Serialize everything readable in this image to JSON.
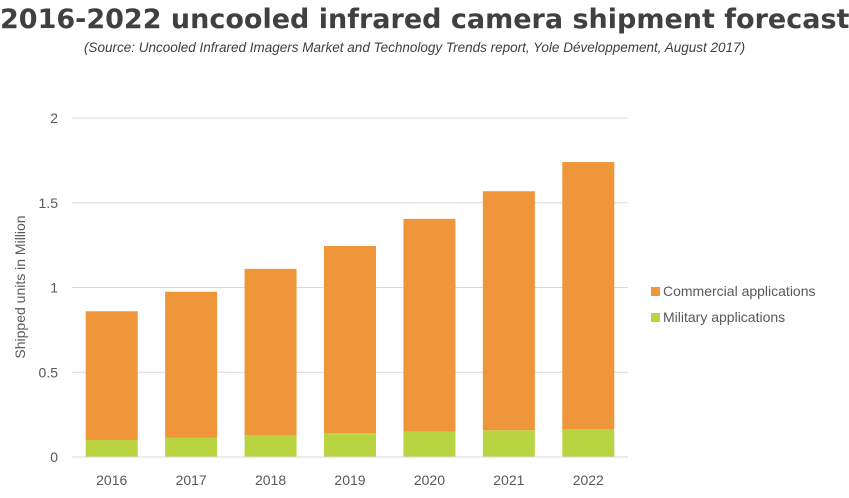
{
  "chart_data": {
    "type": "bar",
    "stacked": true,
    "title": "2016-2022 uncooled infrared camera shipment forecast",
    "subtitle": "(Source: Uncooled Infrared Imagers Market and Technology Trends report, Yole Développement, August 2017)",
    "xlabel": "",
    "ylabel": "Shipped units in Million",
    "ylim": [
      0,
      2
    ],
    "yticks": [
      "0",
      "0.5",
      "1",
      "1.5",
      "2"
    ],
    "grid": true,
    "legend_position": "right",
    "categories": [
      "2016",
      "2017",
      "2018",
      "2019",
      "2020",
      "2021",
      "2022"
    ],
    "series": [
      {
        "name": "Military applications",
        "color": "#b8d440",
        "values": [
          0.1,
          0.115,
          0.13,
          0.14,
          0.15,
          0.158,
          0.165
        ]
      },
      {
        "name": "Commercial applications",
        "color": "#f0963a",
        "values": [
          0.76,
          0.86,
          0.98,
          1.105,
          1.255,
          1.41,
          1.575
        ]
      }
    ]
  }
}
